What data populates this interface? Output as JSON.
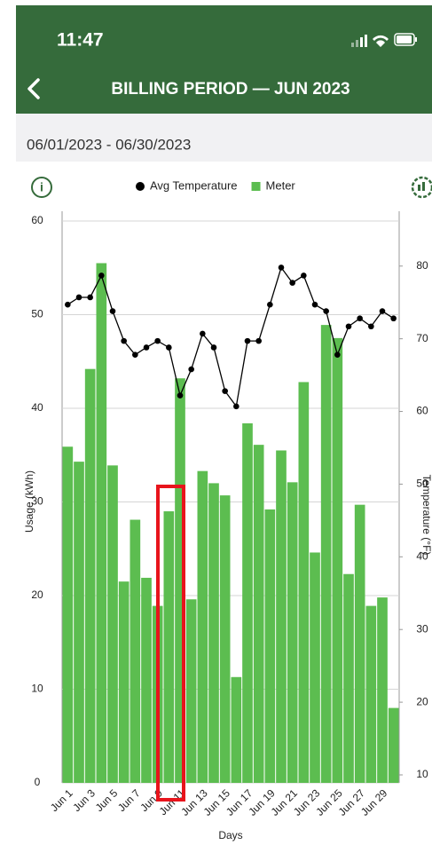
{
  "status_bar": {
    "time": "11:47"
  },
  "header": {
    "title": "BILLING PERIOD — JUN 2023"
  },
  "date_range": "06/01/2023 - 06/30/2023",
  "chart_data": {
    "type": "bar",
    "x_label": "Days",
    "y_label": "Usage (kWh)",
    "y2_label": "Temperature (°F)",
    "categories": [
      "Jun 1",
      null,
      "Jun 3",
      null,
      "Jun 5",
      null,
      "Jun 7",
      null,
      "Jun 9",
      null,
      "Jun 11",
      null,
      "Jun 13",
      null,
      "Jun 15",
      null,
      "Jun 17",
      null,
      "Jun 19",
      null,
      "Jun 21",
      null,
      "Jun 23",
      null,
      "Jun 25",
      null,
      "Jun 27",
      null,
      "Jun 29",
      null
    ],
    "series": [
      {
        "name": "Avg Temperature",
        "type": "line",
        "axis": "y2",
        "color": "#000000",
        "values": [
          74.7,
          75.7,
          75.7,
          78.7,
          73.8,
          69.7,
          67.8,
          68.8,
          69.7,
          68.8,
          62.2,
          65.8,
          70.7,
          68.8,
          62.8,
          60.7,
          69.7,
          69.7,
          74.7,
          79.8,
          77.7,
          78.7,
          74.7,
          73.8,
          67.8,
          71.7,
          72.8,
          71.7,
          73.8,
          72.8
        ]
      },
      {
        "name": "Meter",
        "type": "bar",
        "color": "#5cbd50",
        "values": [
          35.9,
          34.3,
          44.2,
          55.5,
          33.9,
          21.5,
          28.1,
          21.9,
          18.9,
          29.0,
          43.2,
          19.6,
          33.3,
          32.0,
          30.7,
          11.3,
          38.4,
          36.1,
          29.2,
          35.5,
          32.1,
          42.8,
          24.6,
          48.9,
          47.5,
          22.3,
          29.7,
          18.9,
          19.8,
          8.0
        ]
      }
    ],
    "ylim": [
      0,
      60
    ],
    "yticks": [
      0,
      10,
      20,
      30,
      40,
      50,
      60
    ],
    "y2lim": [
      8.9,
      86.2
    ],
    "y2ticks": [
      10,
      20,
      30,
      40,
      50,
      60,
      70,
      80
    ],
    "grid": true,
    "legend": "top"
  }
}
